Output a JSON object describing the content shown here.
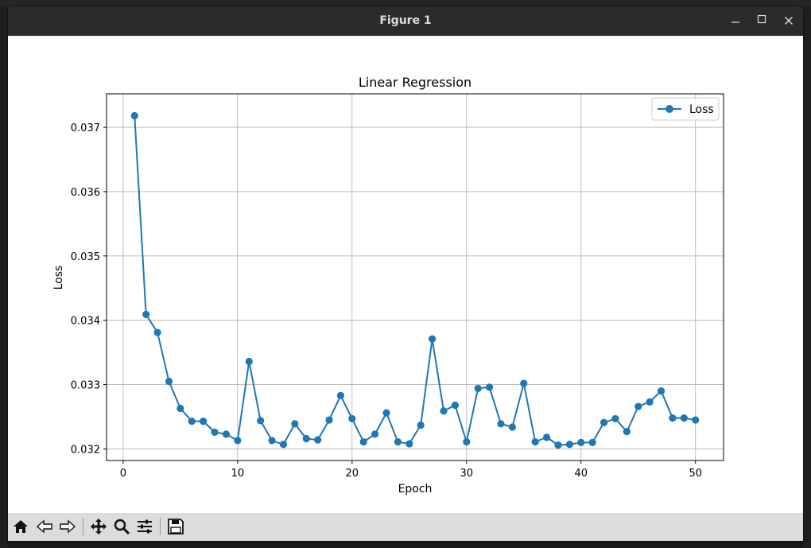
{
  "window": {
    "title": "Figure 1"
  },
  "toolbar": {
    "buttons": [
      "home-icon",
      "back-icon",
      "forward-icon",
      "pan-icon",
      "zoom-icon",
      "configure-subplots-icon",
      "save-icon"
    ]
  },
  "chart_data": {
    "type": "line",
    "title": "Linear Regression",
    "xlabel": "Epoch",
    "ylabel": "Loss",
    "xlim": [
      -1.45,
      52.45
    ],
    "ylim": [
      0.03182,
      0.03752
    ],
    "xticks": [
      0,
      10,
      20,
      30,
      40,
      50
    ],
    "yticks": [
      0.032,
      0.033,
      0.034,
      0.035,
      0.036,
      0.037
    ],
    "ytick_labels": [
      "0.032",
      "0.033",
      "0.034",
      "0.035",
      "0.036",
      "0.037"
    ],
    "grid": true,
    "legend_position": "top-right",
    "color": "#1f77b4",
    "series": [
      {
        "name": "Loss",
        "marker": "circle",
        "x": [
          1,
          2,
          3,
          4,
          5,
          6,
          7,
          8,
          9,
          10,
          11,
          12,
          13,
          14,
          15,
          16,
          17,
          18,
          19,
          20,
          21,
          22,
          23,
          24,
          25,
          26,
          27,
          28,
          29,
          30,
          31,
          32,
          33,
          34,
          35,
          36,
          37,
          38,
          39,
          40,
          41,
          42,
          43,
          44,
          45,
          46,
          47,
          48,
          49,
          50
        ],
        "y": [
          0.03718,
          0.03409,
          0.03381,
          0.03305,
          0.03263,
          0.03243,
          0.03243,
          0.03226,
          0.03223,
          0.03213,
          0.03336,
          0.03244,
          0.03213,
          0.03207,
          0.03239,
          0.03216,
          0.03214,
          0.03245,
          0.03283,
          0.03247,
          0.03211,
          0.03223,
          0.03256,
          0.03211,
          0.03208,
          0.03237,
          0.03371,
          0.03259,
          0.03268,
          0.03211,
          0.03294,
          0.03296,
          0.03239,
          0.03234,
          0.03302,
          0.03211,
          0.03218,
          0.03206,
          0.03207,
          0.0321,
          0.0321,
          0.03241,
          0.03247,
          0.03227,
          0.03266,
          0.03273,
          0.0329,
          0.03248,
          0.03248,
          0.03245
        ]
      }
    ]
  }
}
